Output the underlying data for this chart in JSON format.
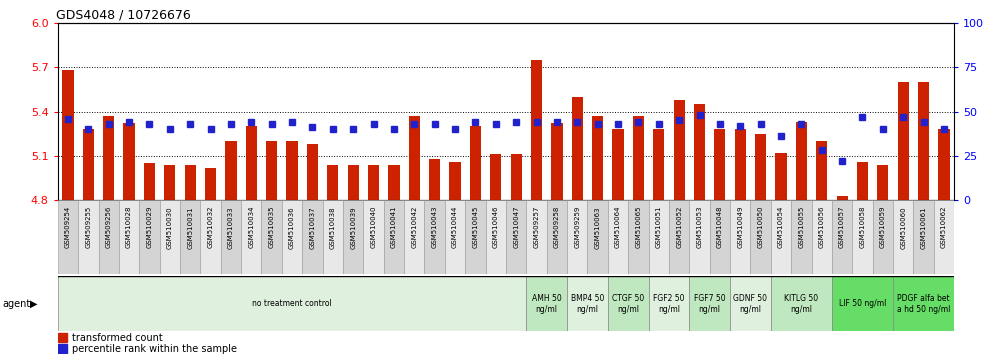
{
  "title": "GDS4048 / 10726676",
  "samples": [
    "GSM509254",
    "GSM509255",
    "GSM509256",
    "GSM510028",
    "GSM510029",
    "GSM510030",
    "GSM510031",
    "GSM510032",
    "GSM510033",
    "GSM510034",
    "GSM510035",
    "GSM510036",
    "GSM510037",
    "GSM510038",
    "GSM510039",
    "GSM510040",
    "GSM510041",
    "GSM510042",
    "GSM510043",
    "GSM510044",
    "GSM510045",
    "GSM510046",
    "GSM510047",
    "GSM509257",
    "GSM509258",
    "GSM509259",
    "GSM510063",
    "GSM510064",
    "GSM510065",
    "GSM510051",
    "GSM510052",
    "GSM510053",
    "GSM510048",
    "GSM510049",
    "GSM510050",
    "GSM510054",
    "GSM510055",
    "GSM510056",
    "GSM510057",
    "GSM510058",
    "GSM510059",
    "GSM510060",
    "GSM510061",
    "GSM510062"
  ],
  "red_values": [
    5.68,
    5.28,
    5.37,
    5.32,
    5.05,
    5.04,
    5.04,
    5.02,
    5.2,
    5.3,
    5.2,
    5.2,
    5.18,
    5.04,
    5.04,
    5.04,
    5.04,
    5.37,
    5.08,
    5.06,
    5.3,
    5.11,
    5.11,
    5.75,
    5.32,
    5.5,
    5.37,
    5.28,
    5.37,
    5.28,
    5.48,
    5.45,
    5.28,
    5.28,
    5.25,
    5.12,
    5.33,
    5.2,
    4.83,
    5.06,
    5.04,
    5.6,
    5.6,
    5.28
  ],
  "blue_values": [
    46,
    40,
    43,
    44,
    43,
    40,
    43,
    40,
    43,
    44,
    43,
    44,
    41,
    40,
    40,
    43,
    40,
    43,
    43,
    40,
    44,
    43,
    44,
    44,
    44,
    44,
    43,
    43,
    44,
    43,
    45,
    48,
    43,
    42,
    43,
    36,
    43,
    28,
    22,
    47,
    40,
    47,
    44,
    40
  ],
  "ylim_left": [
    4.8,
    6.0
  ],
  "ylim_right": [
    0,
    100
  ],
  "yticks_left": [
    4.8,
    5.1,
    5.4,
    5.7,
    6.0
  ],
  "yticks_right": [
    0,
    25,
    50,
    75,
    100
  ],
  "gridlines": [
    5.1,
    5.4,
    5.7
  ],
  "agents": [
    {
      "label": "no treatment control",
      "start": 0,
      "end": 23,
      "color": "#dff0df",
      "border": "#aaaaaa"
    },
    {
      "label": "AMH 50\nng/ml",
      "start": 23,
      "end": 25,
      "color": "#c0e8c0",
      "border": "#aaaaaa"
    },
    {
      "label": "BMP4 50\nng/ml",
      "start": 25,
      "end": 27,
      "color": "#dff0df",
      "border": "#aaaaaa"
    },
    {
      "label": "CTGF 50\nng/ml",
      "start": 27,
      "end": 29,
      "color": "#c0e8c0",
      "border": "#aaaaaa"
    },
    {
      "label": "FGF2 50\nng/ml",
      "start": 29,
      "end": 31,
      "color": "#dff0df",
      "border": "#aaaaaa"
    },
    {
      "label": "FGF7 50\nng/ml",
      "start": 31,
      "end": 33,
      "color": "#c0e8c0",
      "border": "#aaaaaa"
    },
    {
      "label": "GDNF 50\nng/ml",
      "start": 33,
      "end": 35,
      "color": "#dff0df",
      "border": "#aaaaaa"
    },
    {
      "label": "KITLG 50\nng/ml",
      "start": 35,
      "end": 38,
      "color": "#c0e8c0",
      "border": "#aaaaaa"
    },
    {
      "label": "LIF 50 ng/ml",
      "start": 38,
      "end": 41,
      "color": "#66dd66",
      "border": "#aaaaaa"
    },
    {
      "label": "PDGF alfa bet\na hd 50 ng/ml",
      "start": 41,
      "end": 44,
      "color": "#66dd66",
      "border": "#aaaaaa"
    }
  ],
  "bar_color": "#cc2200",
  "blue_color": "#2222cc",
  "ticklabel_colors": [
    "#d0d0d0",
    "#e8e8e8"
  ]
}
